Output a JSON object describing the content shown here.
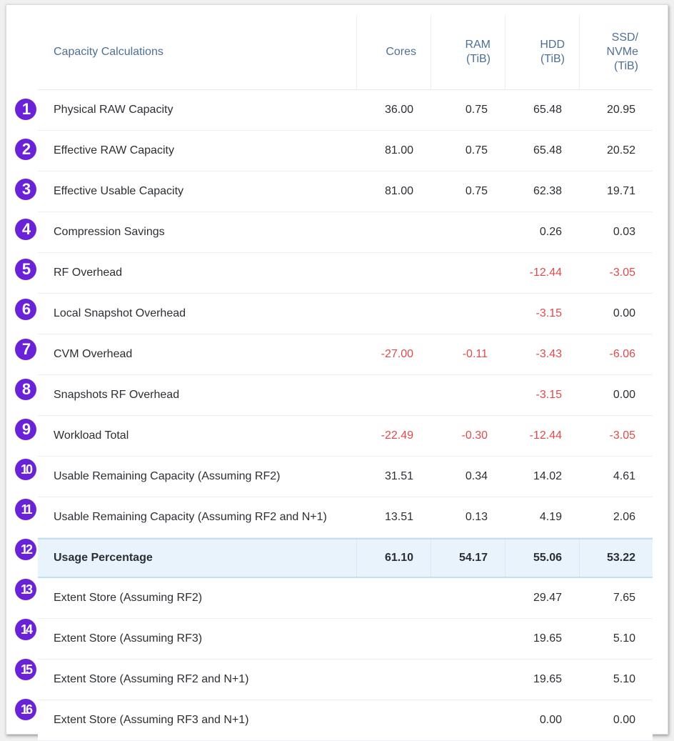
{
  "header": {
    "title": "Capacity Calculations",
    "cols": [
      "Cores",
      "RAM\n(TiB)",
      "HDD\n(TiB)",
      "SSD/\nNVMe\n(TiB)"
    ]
  },
  "rows": [
    {
      "n": "1",
      "label": "Physical RAW Capacity",
      "v": [
        "36.00",
        "0.75",
        "65.48",
        "20.95"
      ]
    },
    {
      "n": "2",
      "label": "Effective RAW Capacity",
      "v": [
        "81.00",
        "0.75",
        "65.48",
        "20.52"
      ]
    },
    {
      "n": "3",
      "label": "Effective Usable Capacity",
      "v": [
        "81.00",
        "0.75",
        "62.38",
        "19.71"
      ]
    },
    {
      "n": "4",
      "label": "Compression Savings",
      "v": [
        "",
        "",
        "0.26",
        "0.03"
      ]
    },
    {
      "n": "5",
      "label": "RF Overhead",
      "v": [
        "",
        "",
        "-12.44",
        "-3.05"
      ]
    },
    {
      "n": "6",
      "label": "Local Snapshot Overhead",
      "v": [
        "",
        "",
        "-3.15",
        "0.00"
      ]
    },
    {
      "n": "7",
      "label": "CVM Overhead",
      "v": [
        "-27.00",
        "-0.11",
        "-3.43",
        "-6.06"
      ]
    },
    {
      "n": "8",
      "label": "Snapshots RF Overhead",
      "v": [
        "",
        "",
        "-3.15",
        "0.00"
      ]
    },
    {
      "n": "9",
      "label": "Workload Total",
      "v": [
        "-22.49",
        "-0.30",
        "-12.44",
        "-3.05"
      ]
    },
    {
      "n": "10",
      "label": "Usable Remaining Capacity (Assuming RF2)",
      "v": [
        "31.51",
        "0.34",
        "14.02",
        "4.61"
      ]
    },
    {
      "n": "11",
      "label": "Usable Remaining Capacity (Assuming RF2 and N+1)",
      "v": [
        "13.51",
        "0.13",
        "4.19",
        "2.06"
      ]
    },
    {
      "n": "12",
      "label": "Usage Percentage",
      "v": [
        "61.10",
        "54.17",
        "55.06",
        "53.22"
      ],
      "highlight": true
    },
    {
      "n": "13",
      "label": "Extent Store (Assuming RF2)",
      "v": [
        "",
        "",
        "29.47",
        "7.65"
      ]
    },
    {
      "n": "14",
      "label": "Extent Store (Assuming RF3)",
      "v": [
        "",
        "",
        "19.65",
        "5.10"
      ]
    },
    {
      "n": "15",
      "label": "Extent Store (Assuming RF2 and N+1)",
      "v": [
        "",
        "",
        "19.65",
        "5.10"
      ]
    },
    {
      "n": "16",
      "label": "Extent Store (Assuming RF3 and N+1)",
      "v": [
        "",
        "",
        "0.00",
        "0.00"
      ]
    }
  ],
  "colors": {
    "negative": "#e04a4a",
    "badge": "#6a22d9",
    "header_text": "#4f6f96",
    "highlight": "#e9f3fb"
  }
}
